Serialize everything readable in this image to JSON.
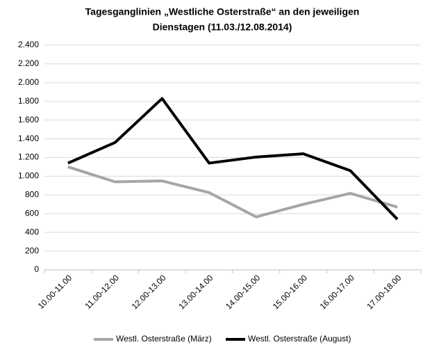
{
  "chart_data": {
    "type": "line",
    "title": [
      "Tagesganglinien „Westliche Osterstraße“ an den jeweiligen",
      "Dienstagen (11.03./12.08.2014)"
    ],
    "categories": [
      "10.00-11.00",
      "11.00-12.00",
      "12.00-13.00",
      "13.00-14.00",
      "14.00-15.00",
      "15.00-16.00",
      "16.00-17.00",
      "17.00-18.00"
    ],
    "series": [
      {
        "name": "Westl. Osterstraße (März)",
        "color": "#a6a6a6",
        "values": [
          1100,
          940,
          950,
          825,
          565,
          700,
          817,
          670
        ]
      },
      {
        "name": "Westl. Osterstraße (August)",
        "color": "#000000",
        "values": [
          1140,
          1360,
          1830,
          1140,
          1205,
          1240,
          1060,
          540
        ]
      }
    ],
    "ylim": [
      0,
      2400
    ],
    "yticks": [
      0,
      200,
      400,
      600,
      800,
      {
        "value": 1000,
        "label": "1.000"
      },
      {
        "value": 1200,
        "label": "1.200"
      },
      {
        "value": 1400,
        "label": "1.400"
      },
      {
        "value": 1600,
        "label": "1.600"
      },
      {
        "value": 1800,
        "label": "1.800"
      },
      {
        "value": 2000,
        "label": "2.000"
      },
      {
        "value": 2200,
        "label": "2.200"
      },
      {
        "value": 2400,
        "label": "2.400"
      }
    ],
    "grid": true,
    "legend": "bottom"
  }
}
